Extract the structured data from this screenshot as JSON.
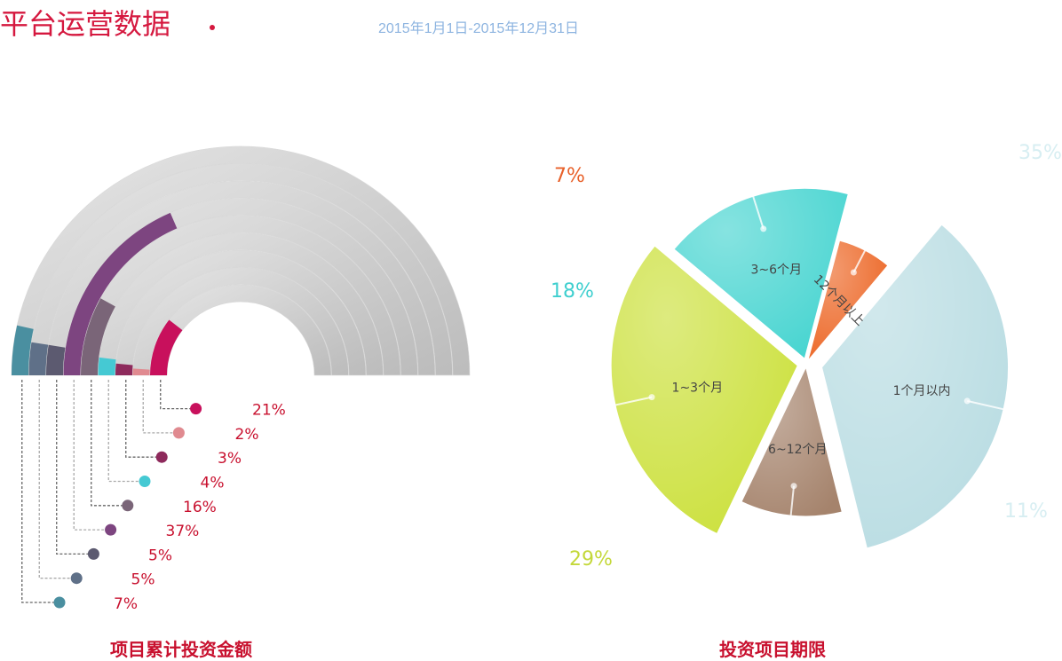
{
  "header": {
    "title": "平台运营数据",
    "date_range": "2015年1月1日-2015年12月31日"
  },
  "chart_data": [
    {
      "type": "radial-bar",
      "title": "项目累计投资金额",
      "ylim": [
        0,
        100
      ],
      "unit": "%",
      "series": [
        {
          "value": 7,
          "label": "7%",
          "color": "#4a8fa0"
        },
        {
          "value": 5,
          "label": "5%",
          "color": "#5f7088"
        },
        {
          "value": 5,
          "label": "5%",
          "color": "#5c5a70"
        },
        {
          "value": 37,
          "label": "37%",
          "color": "#7d4580"
        },
        {
          "value": 16,
          "label": "16%",
          "color": "#7a6578"
        },
        {
          "value": 4,
          "label": "4%",
          "color": "#45c9d3"
        },
        {
          "value": 3,
          "label": "3%",
          "color": "#8e2a5c"
        },
        {
          "value": 2,
          "label": "2%",
          "color": "#e08a90"
        },
        {
          "value": 21,
          "label": "21%",
          "color": "#c8105c"
        }
      ]
    },
    {
      "type": "pie",
      "title": "投资项目期限",
      "slices": [
        {
          "name": "1个月以内",
          "value": 35,
          "label": "35%",
          "color": "#b8dce2",
          "label_color": "#d7eef2"
        },
        {
          "name": "6~12个月",
          "value": 11,
          "label": "11%",
          "color": "#a5836c",
          "label_color": "#d7eef2"
        },
        {
          "name": "1~3个月",
          "value": 29,
          "label": "29%",
          "color": "#cbe03a",
          "label_color": "#c4d83a"
        },
        {
          "name": "3~6个月",
          "value": 18,
          "label": "18%",
          "color": "#45d4d0",
          "label_color": "#3fcfcf"
        },
        {
          "name": "12个月以上",
          "value": 7,
          "label": "7%",
          "color": "#ec6422",
          "label_color": "#e8612a"
        }
      ]
    }
  ]
}
